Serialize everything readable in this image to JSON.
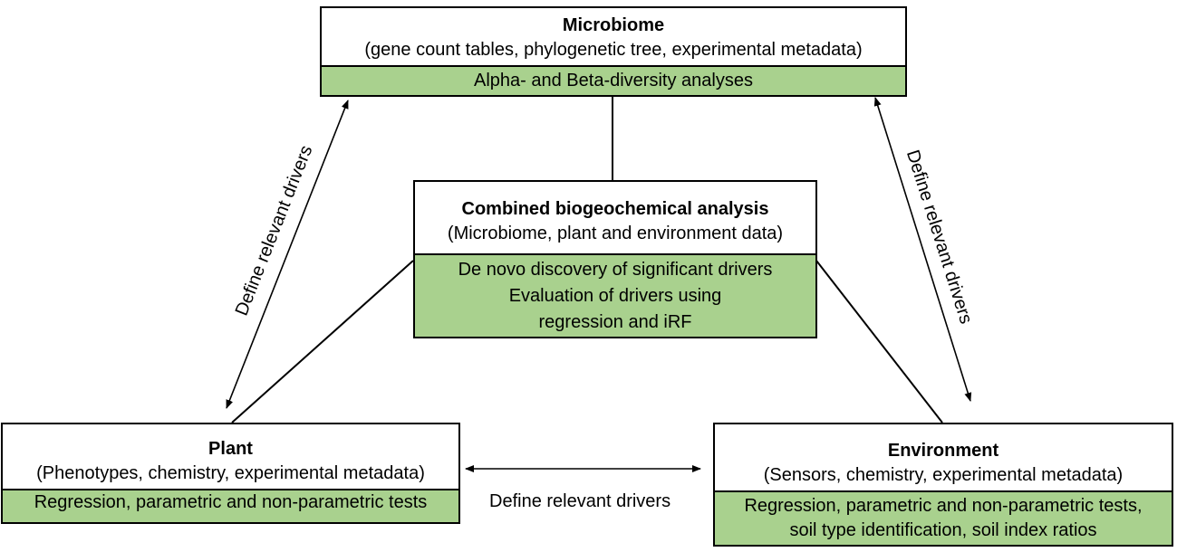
{
  "microbiome": {
    "title": "Microbiome",
    "subtitle": "(gene count tables, phylogenetic tree, experimental metadata)",
    "analyses": [
      "Alpha- and Beta-diversity analyses"
    ]
  },
  "combined": {
    "title": "Combined biogeochemical analysis",
    "subtitle": "(Microbiome, plant and environment data)",
    "analyses": [
      "De novo discovery of significant drivers",
      "Evaluation of drivers using",
      "regression and iRF"
    ]
  },
  "plant": {
    "title": "Plant",
    "subtitle": "(Phenotypes, chemistry, experimental metadata)",
    "analyses": [
      "Regression, parametric and non-parametric tests"
    ]
  },
  "environment": {
    "title": "Environment",
    "subtitle": "(Sensors, chemistry, experimental metadata)",
    "analyses": [
      "Regression, parametric and non-parametric tests,",
      "soil type identification, soil index ratios"
    ]
  },
  "edge_labels": {
    "left": "Define relevant drivers",
    "right": "Define relevant drivers",
    "bottom": "Define relevant drivers"
  },
  "colors": {
    "analysis_fill": "#a9d18e",
    "border": "#000000"
  }
}
